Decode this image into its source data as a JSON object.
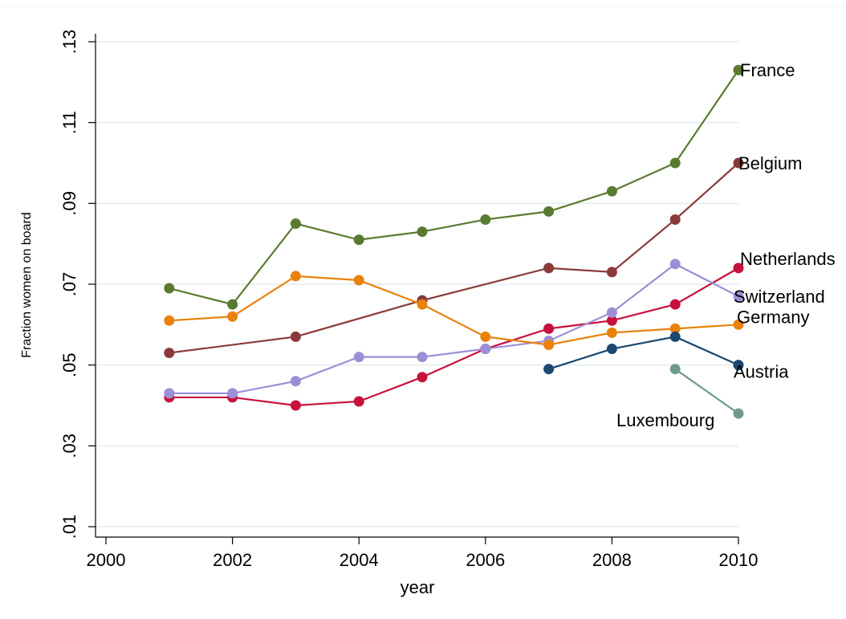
{
  "chart_data": {
    "type": "line",
    "xlabel": "year",
    "ylabel": "Fraction women on board",
    "xlim": [
      2000,
      2010
    ],
    "ylim": [
      0.01,
      0.13
    ],
    "x_ticks": [
      2000,
      2002,
      2004,
      2006,
      2008,
      2010
    ],
    "x_tick_labels": [
      "2000",
      "2002",
      "2004",
      "2006",
      "2008",
      "2010"
    ],
    "y_ticks": [
      0.01,
      0.03,
      0.05,
      0.07,
      0.09,
      0.11,
      0.13
    ],
    "y_tick_labels": [
      ".01",
      ".03",
      ".05",
      ".07",
      ".09",
      ".11",
      ".13"
    ],
    "grid": "horizontal",
    "legend": "none (series labelled at line ends)",
    "series": [
      {
        "name": "France",
        "color": "#5a7a30",
        "x": [
          2001,
          2002,
          2003,
          2004,
          2005,
          2006,
          2007,
          2008,
          2009,
          2010
        ],
        "y": [
          0.069,
          0.065,
          0.085,
          0.081,
          0.083,
          0.086,
          0.088,
          0.093,
          0.1,
          0.123
        ]
      },
      {
        "name": "Belgium",
        "color": "#8b3a3a",
        "x": [
          2001,
          2003,
          2005,
          2007,
          2008,
          2009,
          2010
        ],
        "y": [
          0.053,
          0.057,
          0.066,
          0.074,
          0.073,
          0.086,
          0.1
        ]
      },
      {
        "name": "Netherlands",
        "color": "#c8103c",
        "x": [
          2001,
          2002,
          2003,
          2004,
          2005,
          2006,
          2007,
          2008,
          2009,
          2010
        ],
        "y": [
          0.042,
          0.042,
          0.04,
          0.041,
          0.047,
          0.054,
          0.059,
          0.061,
          0.065,
          0.074
        ]
      },
      {
        "name": "Switzerland",
        "color": "#9b8fd6",
        "x": [
          2001,
          2002,
          2003,
          2004,
          2005,
          2006,
          2007,
          2008,
          2009,
          2010
        ],
        "y": [
          0.043,
          0.043,
          0.046,
          0.052,
          0.052,
          0.054,
          0.056,
          0.063,
          0.075,
          0.067
        ]
      },
      {
        "name": "Germany",
        "color": "#e8820c",
        "x": [
          2001,
          2002,
          2003,
          2004,
          2005,
          2006,
          2007,
          2008,
          2009,
          2010
        ],
        "y": [
          0.061,
          0.062,
          0.072,
          0.071,
          0.065,
          0.057,
          0.055,
          0.058,
          0.059,
          0.06
        ]
      },
      {
        "name": "Austria",
        "color": "#1a4870",
        "x": [
          2007,
          2008,
          2009,
          2010
        ],
        "y": [
          0.049,
          0.054,
          0.057,
          0.05
        ]
      },
      {
        "name": "Luxembourg",
        "color": "#6f9a8c",
        "x": [
          2009,
          2010
        ],
        "y": [
          0.049,
          0.038
        ]
      }
    ]
  }
}
